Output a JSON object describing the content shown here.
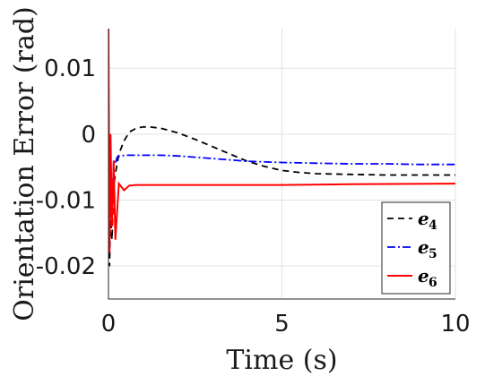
{
  "chart_data": {
    "type": "line",
    "title": "",
    "xlabel": "Time (s)",
    "ylabel": "Orientation Error (rad)",
    "xlim": [
      0,
      10
    ],
    "ylim": [
      -0.025,
      0.016
    ],
    "xticks": [
      0,
      5,
      10
    ],
    "xtick_labels": [
      "0",
      "5",
      "10"
    ],
    "yticks": [
      -0.02,
      -0.01,
      0,
      0.01
    ],
    "ytick_labels": [
      "-0.02",
      "-0.01",
      "0",
      "0.01"
    ],
    "grid": true,
    "legend_position": "bottom-right",
    "series": [
      {
        "name_base": "e",
        "name_sub": "4",
        "color": "#000000",
        "style": "dashed",
        "x": [
          0,
          0.03,
          0.06,
          0.1,
          0.15,
          0.2,
          0.3,
          0.45,
          0.6,
          0.8,
          1.0,
          1.2,
          1.5,
          2.0,
          2.5,
          3.0,
          3.5,
          4.0,
          4.5,
          5.0,
          5.5,
          6.0,
          7.0,
          8.0,
          9.0,
          10.0
        ],
        "y": [
          0,
          -0.02,
          -0.012,
          -0.016,
          -0.008,
          -0.006,
          -0.003,
          -0.001,
          0.0003,
          0.0009,
          0.0011,
          0.0011,
          0.0009,
          0.0002,
          -0.0008,
          -0.0019,
          -0.003,
          -0.0041,
          -0.0049,
          -0.0055,
          -0.0058,
          -0.006,
          -0.0061,
          -0.0062,
          -0.0062,
          -0.0062
        ]
      },
      {
        "name_base": "e",
        "name_sub": "5",
        "color": "#0000ff",
        "style": "dashdot",
        "x": [
          0,
          0.03,
          0.06,
          0.1,
          0.15,
          0.2,
          0.25,
          0.35,
          0.5,
          1.0,
          1.5,
          2.0,
          2.5,
          3.0,
          3.5,
          4.0,
          5.0,
          6.0,
          7.0,
          8.0,
          9.0,
          10.0
        ],
        "y": [
          0,
          -0.018,
          -0.003,
          -0.012,
          -0.004,
          -0.0045,
          -0.0035,
          -0.0033,
          -0.0032,
          -0.0032,
          -0.0032,
          -0.0033,
          -0.0035,
          -0.0037,
          -0.0039,
          -0.0041,
          -0.0043,
          -0.0044,
          -0.0045,
          -0.0045,
          -0.0046,
          -0.0046
        ]
      },
      {
        "name_base": "e",
        "name_sub": "6",
        "color": "#ff0000",
        "style": "solid",
        "x": [
          0,
          0.03,
          0.06,
          0.1,
          0.15,
          0.2,
          0.3,
          0.45,
          0.6,
          0.8,
          1.0,
          2.0,
          3.0,
          5.0,
          7.0,
          10.0
        ],
        "y": [
          0.016,
          -0.018,
          0.0,
          -0.014,
          -0.004,
          -0.016,
          -0.0075,
          -0.0085,
          -0.0078,
          -0.0077,
          -0.0077,
          -0.0077,
          -0.0077,
          -0.0077,
          -0.0076,
          -0.0075
        ]
      }
    ]
  }
}
